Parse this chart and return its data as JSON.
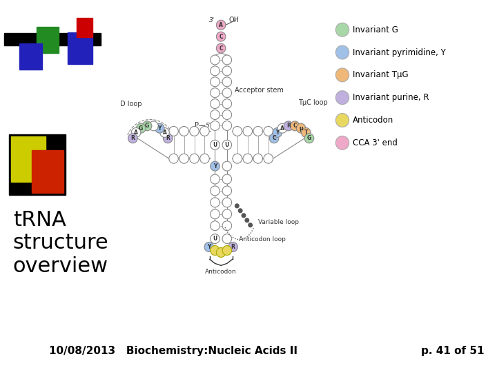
{
  "bg_color": "#ffffff",
  "title_text": "tRNA\nstructure\noverview",
  "title_fontsize": 22,
  "footer_left": "10/08/2013   Biochemistry:Nucleic Acids II",
  "footer_right": "p. 41 of 51",
  "footer_fontsize": 11,
  "legend_items": [
    {
      "label": "Invariant G",
      "color": "#a8d8a8"
    },
    {
      "label": "Invariant pyrimidine, Y",
      "color": "#a0c0e8"
    },
    {
      "label": "Invariant TμG",
      "color": "#f0b878"
    },
    {
      "label": "Invariant purine, R",
      "color": "#c0b0e0"
    },
    {
      "label": "Anticodon",
      "color": "#e8d860"
    },
    {
      "label": "CCA 3' end",
      "color": "#f0a8c8"
    }
  ],
  "legend_fontsize": 8.5
}
